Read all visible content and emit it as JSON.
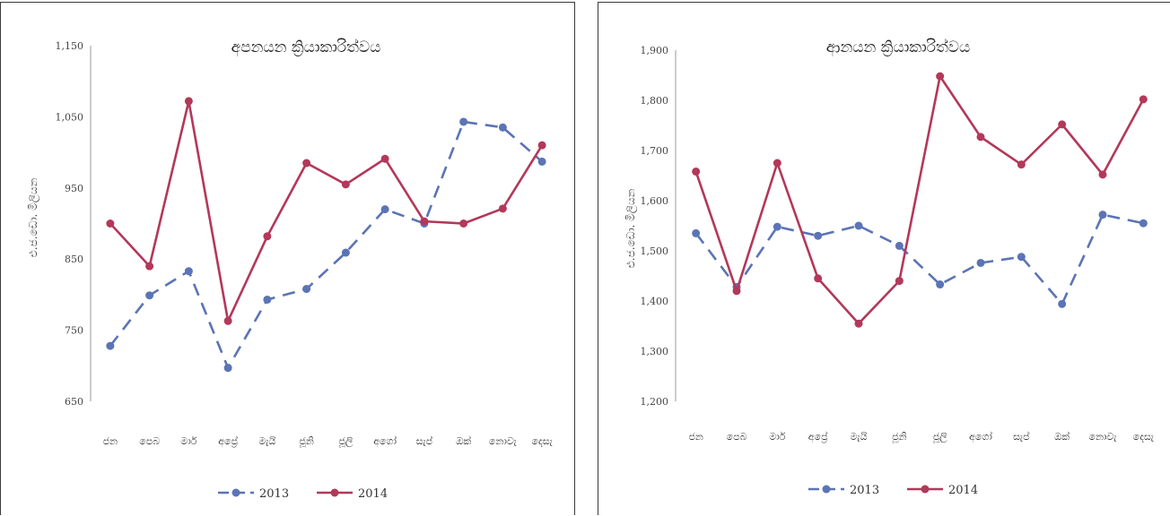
{
  "colors": {
    "series_2013": "#5b74b5",
    "series_2014": "#b3385a",
    "axis": "#999999"
  },
  "chart_data": [
    {
      "type": "line",
      "title": "අපනයන ක්‍රියාකාරිත්වය",
      "ylabel": "එ.ජ.ඩො. මිලියන",
      "xlabel": "",
      "ylim": [
        650,
        1150
      ],
      "yticks": [
        650,
        750,
        850,
        950,
        1050,
        1150
      ],
      "ytick_labels": [
        "650",
        "750",
        "850",
        "950",
        "1,050",
        "1,150"
      ],
      "categories": [
        "ජන",
        "පෙබ",
        "මාර්",
        "අප්‍රේ",
        "මැයි",
        "ජූනි",
        "ජූලි",
        "අගෝ",
        "සැප්",
        "ඔක්",
        "නොවැ",
        "දෙසැ"
      ],
      "series": [
        {
          "name": "2013",
          "values": [
            728,
            799,
            833,
            697,
            793,
            808,
            859,
            920,
            900,
            1043,
            1035,
            987
          ]
        },
        {
          "name": "2014",
          "values": [
            900,
            840,
            1072,
            763,
            882,
            985,
            955,
            991,
            903,
            900,
            921,
            1010
          ]
        }
      ],
      "legend": "bottom"
    },
    {
      "type": "line",
      "title": "ආනයන ක්‍රියාකාරිත්වය",
      "ylabel": "එ.ජ.ඩො. මිලියන",
      "xlabel": "",
      "ylim": [
        1200,
        1900
      ],
      "yticks": [
        1200,
        1300,
        1400,
        1500,
        1600,
        1700,
        1800,
        1900
      ],
      "ytick_labels": [
        "1,200",
        "1,300",
        "1,400",
        "1,500",
        "1,600",
        "1,700",
        "1,800",
        "1,900"
      ],
      "categories": [
        "ජන",
        "පෙබ",
        "මාර්",
        "අප්‍රේ",
        "මැයි",
        "ජූනි",
        "ජූලි",
        "අගෝ",
        "සැප්",
        "ඔක්",
        "නොවැ",
        "දෙසැ"
      ],
      "series": [
        {
          "name": "2013",
          "values": [
            1535,
            1428,
            1548,
            1530,
            1550,
            1510,
            1433,
            1476,
            1488,
            1394,
            1572,
            1555
          ]
        },
        {
          "name": "2014",
          "values": [
            1658,
            1420,
            1675,
            1445,
            1355,
            1440,
            1848,
            1727,
            1672,
            1752,
            1652,
            1802
          ]
        }
      ],
      "legend": "bottom"
    }
  ]
}
